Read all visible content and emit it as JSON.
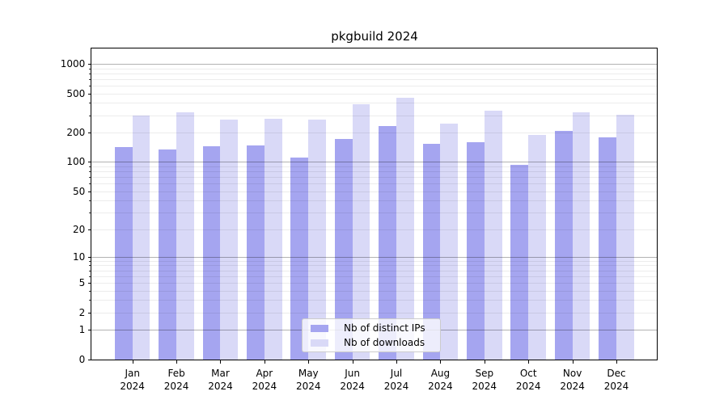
{
  "chart_data": {
    "type": "bar",
    "title": "pkgbuild 2024",
    "categories": [
      "Jan",
      "Feb",
      "Mar",
      "Apr",
      "May",
      "Jun",
      "Jul",
      "Aug",
      "Sep",
      "Oct",
      "Nov",
      "Dec"
    ],
    "category_year": "2024",
    "series": [
      {
        "name": "Nb of distinct IPs",
        "color": "#a5a5f0",
        "values": [
          142,
          134,
          145,
          148,
          111,
          171,
          234,
          154,
          159,
          94,
          207,
          179
        ]
      },
      {
        "name": "Nb of downloads",
        "color": "#d9d9f7",
        "values": [
          296,
          320,
          271,
          278,
          272,
          388,
          454,
          248,
          334,
          189,
          319,
          302
        ]
      }
    ],
    "xlabel": "",
    "ylabel": "",
    "yscale": "log1p",
    "ylim": [
      0,
      1446
    ],
    "y_tick_values": [
      0,
      1,
      2,
      5,
      10,
      20,
      50,
      100,
      200,
      500,
      1000
    ],
    "y_tick_labels": [
      "0",
      "1",
      "2",
      "5",
      "10",
      "20",
      "50",
      "100",
      "200",
      "500",
      "1000"
    ],
    "y_major_grid": [
      1,
      10,
      100,
      1000
    ],
    "y_minor_grid": [
      2,
      3,
      4,
      5,
      6,
      7,
      8,
      9,
      20,
      30,
      40,
      50,
      60,
      70,
      80,
      90,
      200,
      300,
      400,
      500,
      600,
      700,
      800,
      900
    ],
    "grid": true,
    "legend_position": "lower center"
  }
}
